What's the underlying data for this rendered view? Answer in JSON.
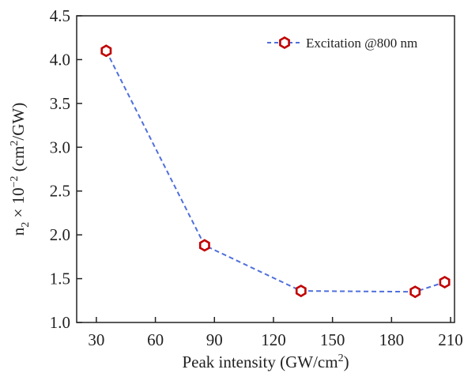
{
  "chart_data": {
    "type": "line",
    "xlabel": "Peak intensity (GW/cm²)",
    "ylabel_parts": [
      "n",
      "2",
      " × 10",
      "−2",
      " (cm",
      "2",
      "/GW)"
    ],
    "xlim": [
      20,
      212
    ],
    "ylim": [
      1.0,
      4.5
    ],
    "xticks": [
      30,
      60,
      90,
      120,
      150,
      180,
      210
    ],
    "yticks": [
      1.0,
      1.5,
      2.0,
      2.5,
      3.0,
      3.5,
      4.0,
      4.5
    ],
    "ytick_labels": [
      "1.0",
      "1.5",
      "2.0",
      "2.5",
      "3.0",
      "3.5",
      "4.0",
      "4.5"
    ],
    "grid": false,
    "legend_position": "top-right",
    "series": [
      {
        "name": "Excitation @800 nm",
        "line_color": "#4f6fdc",
        "line_style": "dashed",
        "marker": "hexagon",
        "marker_color": "#c00000",
        "x": [
          35,
          85,
          134,
          192,
          207
        ],
        "y": [
          4.1,
          1.88,
          1.36,
          1.35,
          1.46
        ]
      }
    ]
  }
}
